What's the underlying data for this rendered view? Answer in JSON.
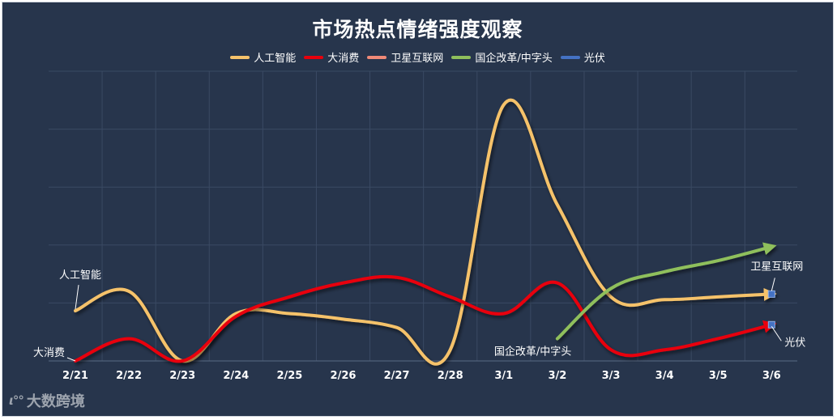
{
  "watermark": {
    "logo": "♀∞",
    "text": "大数跨境"
  },
  "chart_data": {
    "type": "line",
    "title": "市场热点情绪强度观察",
    "categories": [
      "2/21",
      "2/22",
      "2/23",
      "2/24",
      "2/25",
      "2/26",
      "2/27",
      "2/28",
      "3/1",
      "3/2",
      "3/3",
      "3/4",
      "3/5",
      "3/6"
    ],
    "ylim": [
      0,
      5.2
    ],
    "grid": true,
    "legend_position": "top",
    "series": [
      {
        "name": "人工智能",
        "color": "#f5c26b",
        "label": "人工智能",
        "values": [
          0.9,
          1.25,
          0.0,
          0.85,
          0.85,
          0.75,
          0.6,
          0.2,
          4.6,
          2.8,
          1.15,
          1.1,
          1.15,
          1.2
        ]
      },
      {
        "name": "大消费",
        "color": "#e8000c",
        "label": "大消费",
        "values": [
          0.0,
          0.4,
          0.0,
          0.8,
          1.15,
          1.4,
          1.5,
          1.15,
          0.85,
          1.4,
          0.2,
          0.2,
          0.4,
          0.65
        ]
      },
      {
        "name": "卫星互联网",
        "color": "#f08a78",
        "label": "卫星互联网",
        "values": [
          null,
          null,
          null,
          null,
          null,
          null,
          null,
          null,
          null,
          null,
          null,
          null,
          null,
          1.2
        ]
      },
      {
        "name": "国企改革/中字头",
        "color": "#8fbf5c",
        "label": "国企改革/中字头",
        "values": [
          null,
          null,
          null,
          null,
          null,
          null,
          null,
          null,
          null,
          0.4,
          1.3,
          1.6,
          1.8,
          2.05
        ]
      },
      {
        "name": "光伏",
        "color": "#4472c4",
        "label": "光伏",
        "values": [
          null,
          null,
          null,
          null,
          null,
          null,
          null,
          null,
          null,
          null,
          null,
          null,
          null,
          0.65
        ]
      }
    ]
  }
}
